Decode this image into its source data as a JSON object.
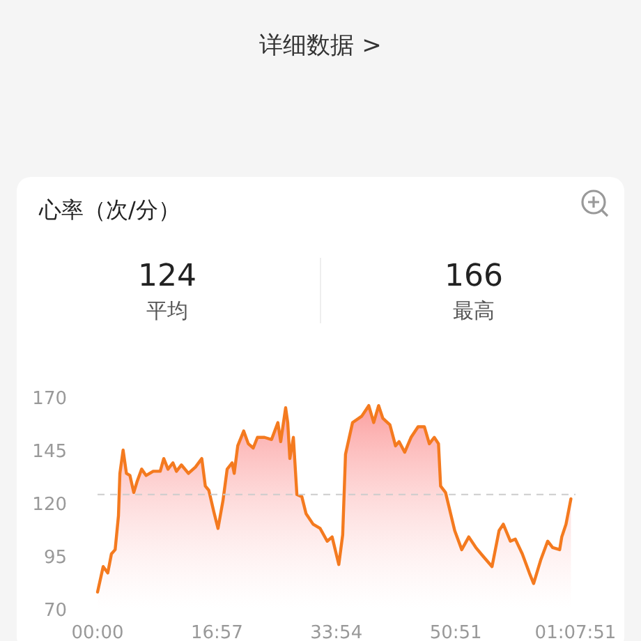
{
  "chart_data": {
    "type": "area",
    "title": "心率（次/分）",
    "annotations": [
      "详细数据 >",
      "124",
      "平均",
      "166",
      "最高"
    ],
    "x": [
      0,
      0.8,
      1.45,
      1.97,
      2.5,
      2.97,
      3.17,
      3.63,
      4.1,
      4.6,
      5.14,
      5.6,
      6.26,
      6.9,
      7.9,
      8.9,
      9.4,
      10,
      10.7,
      11.2,
      11.9,
      12.9,
      13.9,
      14.8,
      15.3,
      15.8,
      16.5,
      17.1,
      17.8,
      18.4,
      19.1,
      19.4,
      19.9,
      20.75,
      21.4,
      22.1,
      22.7,
      23.7,
      24.7,
      25.6,
      26,
      26.7,
      27,
      27.3,
      27.8,
      28.3,
      29,
      29.6,
      30.6,
      31.6,
      32.6,
      33.3,
      34.25,
      34.8,
      35.2,
      36.2,
      37.5,
      38.5,
      39.2,
      39.9,
      40.5,
      41.5,
      42.3,
      42.8,
      43.6,
      44.5,
      45.5,
      46.4,
      47.1,
      47.8,
      48.4,
      48.7,
      49.4,
      50.7,
      51.7,
      52.7,
      53.7,
      54.7,
      56,
      57,
      57.6,
      58.6,
      59.3,
      60.3,
      61.3,
      61.9,
      62.9,
      63.9,
      64.6,
      65.6,
      65.9,
      66.5,
      67.2
    ],
    "series": [
      {
        "color": "#f47a1f",
        "values": [
          78,
          90,
          87,
          96,
          98,
          114,
          134,
          145,
          134,
          133,
          125,
          130,
          136,
          133,
          135,
          135,
          141,
          136,
          139,
          135,
          138,
          134,
          137,
          141,
          128,
          126,
          116,
          108,
          121,
          136,
          139,
          134,
          147,
          154,
          148,
          146,
          151,
          151,
          150,
          158,
          149,
          165,
          158,
          141,
          151,
          124,
          123,
          115,
          110,
          108,
          102,
          104,
          91,
          105,
          143,
          158,
          161,
          166,
          158,
          166,
          160,
          157,
          147,
          149,
          144,
          151,
          156,
          156,
          148,
          151,
          148,
          128,
          125,
          107,
          98,
          104,
          99,
          95,
          90,
          107,
          110,
          102,
          103,
          96,
          87,
          82,
          93,
          102,
          99,
          98,
          104,
          110,
          122
        ]
      }
    ],
    "xlim": [
      0,
      67.85
    ],
    "ylim": [
      70,
      170
    ],
    "xticks": [
      {
        "value": 0,
        "label": "00:00"
      },
      {
        "value": 16.95,
        "label": "16:57"
      },
      {
        "value": 33.9,
        "label": "33:54"
      },
      {
        "value": 50.85,
        "label": "50:51"
      },
      {
        "value": 67.85,
        "label": "01:07:51"
      }
    ],
    "yticks": [
      70,
      95,
      120,
      145,
      170
    ],
    "ref_lines": [
      {
        "axis": "y",
        "value": 124,
        "color": "#cccccc",
        "line_style": "dashed"
      }
    ],
    "grid": false
  }
}
